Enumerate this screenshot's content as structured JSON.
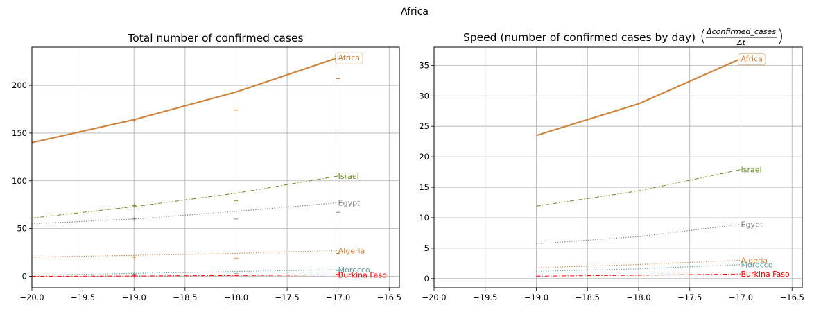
{
  "figure": {
    "suptitle": "Africa"
  },
  "chart_data": [
    {
      "type": "line",
      "title": "Total number of confirmed cases",
      "xlabel": "",
      "ylabel": "",
      "xlim": [
        -20.0,
        -16.4
      ],
      "ylim": [
        -12,
        240
      ],
      "xticks": [
        -20.0,
        -19.5,
        -19.0,
        -18.5,
        -18.0,
        -17.5,
        -17.0,
        -16.5
      ],
      "xtick_labels": [
        "−20.0",
        "−19.5",
        "−19.0",
        "−18.5",
        "−18.0",
        "−17.5",
        "−17.0",
        "−16.5"
      ],
      "yticks": [
        0,
        50,
        100,
        150,
        200
      ],
      "ytick_labels": [
        "0",
        "50",
        "100",
        "150",
        "200"
      ],
      "grid": true,
      "legend_box_series": "Africa",
      "series": [
        {
          "name": "Africa",
          "color": "#cd853f",
          "style": "solid",
          "width": 2.2,
          "x": [
            -20,
            -19,
            -18,
            -17
          ],
          "y": [
            140,
            164,
            193,
            229
          ],
          "markers": [
            [
              -19,
              163
            ],
            [
              -18,
              174
            ],
            [
              -17,
              207
            ]
          ]
        },
        {
          "name": "Israel",
          "color": "#6b8e23",
          "style": "dashdot",
          "width": 1,
          "x": [
            -20,
            -19,
            -18,
            -17
          ],
          "y": [
            61,
            73,
            87,
            105
          ],
          "markers": [
            [
              -19,
              74
            ],
            [
              -18,
              79
            ],
            [
              -17,
              106
            ]
          ]
        },
        {
          "name": "Egypt",
          "color": "#808080",
          "style": "dotted",
          "width": 1.2,
          "x": [
            -20,
            -19,
            -18,
            -17
          ],
          "y": [
            55,
            60,
            68,
            77
          ],
          "markers": [
            [
              -19,
              60
            ],
            [
              -18,
              60
            ],
            [
              -17,
              67
            ]
          ]
        },
        {
          "name": "Algeria",
          "color": "#cd853f",
          "style": "dotted",
          "width": 1.2,
          "x": [
            -20,
            -19,
            -18,
            -17
          ],
          "y": [
            20,
            22,
            24,
            27
          ],
          "markers": [
            [
              -19,
              20
            ],
            [
              -18,
              19
            ],
            [
              -17,
              24
            ]
          ]
        },
        {
          "name": "Morocco",
          "color": "#5f9ea0",
          "style": "dotted",
          "width": 1.2,
          "x": [
            -20,
            -19,
            -18,
            -17
          ],
          "y": [
            1,
            3,
            5,
            7
          ],
          "markers": [
            [
              -19,
              2
            ],
            [
              -18,
              3
            ],
            [
              -17,
              6
            ]
          ]
        },
        {
          "name": "Burkina Faso",
          "color": "#ff0000",
          "style": "dashdot",
          "width": 1,
          "x": [
            -20,
            -19,
            -18,
            -17
          ],
          "y": [
            0,
            0.3,
            0.8,
            1.5
          ],
          "markers": [
            [
              -19,
              0.5
            ],
            [
              -18,
              1
            ],
            [
              -17,
              2
            ]
          ]
        }
      ]
    },
    {
      "type": "line",
      "title_text": "Speed (number of confirmed cases by day)",
      "title_math_numerator": "Δconfirmed_cases",
      "title_math_denominator": "Δt",
      "xlabel": "",
      "ylabel": "",
      "xlim": [
        -20.0,
        -16.4
      ],
      "ylim": [
        -1.5,
        38
      ],
      "xticks": [
        -20.0,
        -19.5,
        -19.0,
        -18.5,
        -18.0,
        -17.5,
        -17.0,
        -16.5
      ],
      "xtick_labels": [
        "−20.0",
        "−19.5",
        "−19.0",
        "−18.5",
        "−18.0",
        "−17.5",
        "−17.0",
        "−16.5"
      ],
      "yticks": [
        0,
        5,
        10,
        15,
        20,
        25,
        30,
        35
      ],
      "ytick_labels": [
        "0",
        "5",
        "10",
        "15",
        "20",
        "25",
        "30",
        "35"
      ],
      "grid": true,
      "legend_box_series": "Africa",
      "series": [
        {
          "name": "Africa",
          "color": "#cd853f",
          "style": "solid",
          "width": 2.2,
          "x": [
            -19,
            -18,
            -17
          ],
          "y": [
            23.5,
            28.7,
            36.1
          ]
        },
        {
          "name": "Israel",
          "color": "#6b8e23",
          "style": "dashdot",
          "width": 1,
          "x": [
            -19,
            -18,
            -17
          ],
          "y": [
            11.9,
            14.4,
            17.9
          ]
        },
        {
          "name": "Egypt",
          "color": "#808080",
          "style": "dotted",
          "width": 1.2,
          "x": [
            -19,
            -18,
            -17
          ],
          "y": [
            5.7,
            6.9,
            8.9
          ]
        },
        {
          "name": "Algeria",
          "color": "#cd853f",
          "style": "dotted",
          "width": 1.2,
          "x": [
            -19,
            -18,
            -17
          ],
          "y": [
            1.8,
            2.3,
            3.0
          ]
        },
        {
          "name": "Morocco",
          "color": "#5f9ea0",
          "style": "dotted",
          "width": 1.2,
          "x": [
            -19,
            -18,
            -17
          ],
          "y": [
            1.2,
            1.6,
            2.3
          ]
        },
        {
          "name": "Burkina Faso",
          "color": "#ff0000",
          "style": "dashdot",
          "width": 1,
          "x": [
            -19,
            -18,
            -17
          ],
          "y": [
            0.4,
            0.55,
            0.75
          ]
        }
      ]
    }
  ]
}
